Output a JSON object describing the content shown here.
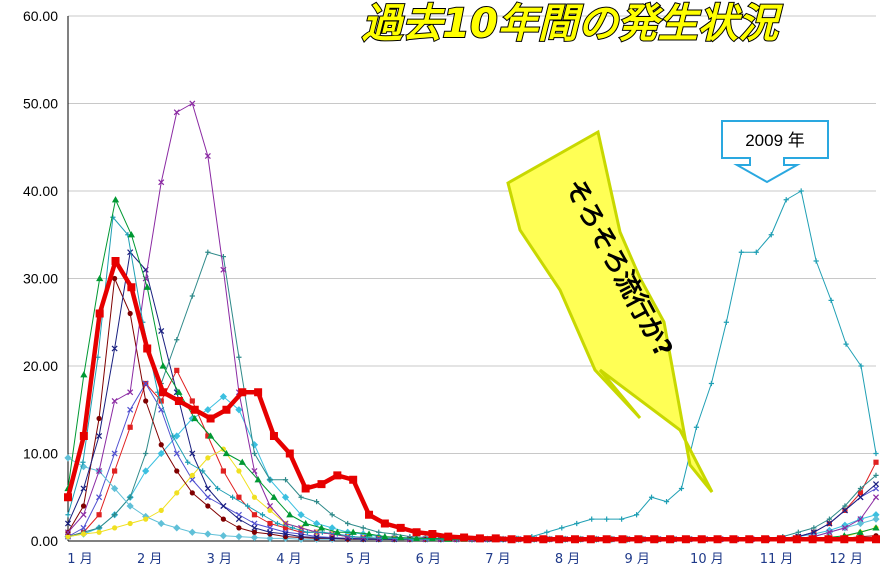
{
  "colors": {
    "series": [
      "#e60000",
      "#009933",
      "#1f9fb4",
      "#8b2aa3",
      "#1a2080",
      "#800000",
      "#f0e020",
      "#60c0d8",
      "#2f8a8a",
      "#5050d0",
      "#e02020",
      "#3cc0e0"
    ],
    "bolt_fill": "#ffff55",
    "bolt_stroke": "#c8d800",
    "callout_stroke": "#2aa8e0",
    "axis": "#000000",
    "grid": "#c8c8c8"
  },
  "texts": {
    "title": "過去10年間の発生状況",
    "bolt_text": "そろそろ流行か?",
    "callout_label": "2009 年"
  },
  "chart_data": {
    "type": "line",
    "title": "過去10年間の発生状況",
    "xlabel": "",
    "ylabel": "",
    "ylim": [
      0,
      60
    ],
    "yticks": [
      "0.00",
      "10.00",
      "20.00",
      "30.00",
      "40.00",
      "50.00",
      "60.00"
    ],
    "month_labels": [
      "1 月",
      "2 月",
      "3 月",
      "4 月",
      "5 月",
      "6 月",
      "7 月",
      "8 月",
      "9 月",
      "10 月",
      "11 月",
      "12 月"
    ],
    "grid": "horizontal",
    "annotations": [
      "そろそろ流行か?",
      "2009 年"
    ],
    "series": [
      {
        "marker": "square",
        "width": 4.5,
        "values": [
          5,
          12,
          26,
          32,
          29,
          22,
          17,
          16,
          15,
          14,
          15,
          17,
          17,
          12,
          10,
          6,
          6.5,
          7.5,
          7,
          3,
          2,
          1.5,
          1,
          0.8,
          0.5,
          0.4,
          0.3,
          0.3,
          0.2,
          0.2,
          0.2,
          0.2,
          0.2,
          0.2,
          0.2,
          0.2,
          0.2,
          0.2,
          0.2,
          0.2,
          0.2,
          0.2,
          0.2,
          0.2,
          0.2,
          0.2,
          0.2,
          0.2,
          0.2,
          0.2,
          0.2,
          0.2
        ]
      },
      {
        "marker": "triangle",
        "width": 1,
        "values": [
          6,
          19,
          30,
          39,
          35,
          29,
          20,
          17,
          14,
          12,
          10,
          9,
          7,
          5,
          3,
          2,
          1.5,
          1,
          1,
          0.8,
          0.5,
          0.4,
          0.3,
          0.3,
          0.2,
          0.2,
          0.2,
          0.2,
          0.2,
          0.2,
          0.2,
          0.2,
          0.2,
          0.2,
          0.2,
          0.2,
          0.2,
          0.2,
          0.2,
          0.2,
          0.2,
          0.2,
          0.2,
          0.2,
          0.2,
          0.2,
          0.2,
          0.3,
          0.4,
          0.6,
          1,
          1.5
        ]
      },
      {
        "marker": "plus",
        "width": 1,
        "values": [
          3,
          9,
          21,
          37,
          35,
          25,
          17,
          12,
          9,
          8,
          6,
          5,
          4,
          3,
          2,
          1.5,
          1,
          1,
          0.8,
          0.5,
          0.4,
          0.3,
          0.3,
          0.2,
          0.2,
          0.2,
          0.2,
          0.2,
          0.2,
          0.2,
          0.3,
          0.5,
          1,
          1.5,
          2,
          2.5,
          2.5,
          2.5,
          3,
          5,
          4.5,
          6,
          13,
          18,
          25,
          33,
          33,
          35,
          39,
          40,
          32,
          27.5,
          22.5,
          20,
          10
        ]
      },
      {
        "marker": "x",
        "width": 1,
        "values": [
          1,
          3,
          8,
          16,
          17,
          30,
          41,
          49,
          50,
          44,
          31,
          17,
          8,
          4,
          2,
          1.5,
          1,
          0.8,
          0.5,
          0.4,
          0.3,
          0.3,
          0.2,
          0.2,
          0.2,
          0.2,
          0.2,
          0.2,
          0.2,
          0.2,
          0.2,
          0.2,
          0.2,
          0.2,
          0.2,
          0.2,
          0.2,
          0.2,
          0.2,
          0.2,
          0.2,
          0.2,
          0.2,
          0.2,
          0.2,
          0.2,
          0.2,
          0.3,
          0.5,
          1,
          1.5,
          2.5,
          5
        ]
      },
      {
        "marker": "x",
        "width": 1,
        "values": [
          2,
          6,
          12,
          22,
          33,
          31,
          24,
          17,
          10,
          6,
          4,
          2.5,
          1.5,
          1,
          0.8,
          0.5,
          0.4,
          0.3,
          0.3,
          0.2,
          0.2,
          0.2,
          0.2,
          0.2,
          0.2,
          0.2,
          0.2,
          0.2,
          0.2,
          0.2,
          0.2,
          0.2,
          0.2,
          0.2,
          0.2,
          0.2,
          0.2,
          0.2,
          0.2,
          0.2,
          0.2,
          0.2,
          0.2,
          0.2,
          0.2,
          0.2,
          0.3,
          0.5,
          1,
          2,
          3.5,
          5,
          6.5
        ]
      },
      {
        "marker": "circle",
        "width": 1,
        "values": [
          1,
          4,
          14,
          30,
          26,
          16,
          11,
          8,
          5.5,
          4,
          2.5,
          1.5,
          1,
          0.8,
          0.5,
          0.4,
          0.3,
          0.3,
          0.2,
          0.2,
          0.2,
          0.2,
          0.2,
          0.2,
          0.2,
          0.2,
          0.2,
          0.2,
          0.2,
          0.2,
          0.2,
          0.2,
          0.2,
          0.2,
          0.2,
          0.2,
          0.2,
          0.2,
          0.2,
          0.2,
          0.2,
          0.2,
          0.2,
          0.2,
          0.2,
          0.2,
          0.2,
          0.2,
          0.2,
          0.2,
          0.3,
          0.5,
          0.6
        ]
      },
      {
        "marker": "circle",
        "width": 1,
        "values": [
          0.5,
          0.8,
          1,
          1.5,
          2,
          2.5,
          3.5,
          5.5,
          7.5,
          9.5,
          10.5,
          8,
          5,
          3.5,
          2,
          1.5,
          1,
          0.8,
          0.5,
          0.4,
          0.3,
          0.3,
          0.2,
          0.2,
          0.2,
          0.2,
          0.2,
          0.2,
          0.2,
          0.2,
          0.2,
          0.2,
          0.2,
          0.2,
          0.2,
          0.2,
          0.2,
          0.2,
          0.2,
          0.2,
          0.2,
          0.2,
          0.2,
          0.2,
          0.2,
          0.2,
          0.2,
          0.2,
          0.2,
          0.3,
          0.5,
          1,
          1.5
        ]
      },
      {
        "marker": "diamond",
        "width": 1,
        "values": [
          9.5,
          8.5,
          8,
          6,
          4,
          2.8,
          2,
          1.5,
          1,
          0.8,
          0.6,
          0.5,
          0.4,
          0.3,
          0.3,
          0.2,
          0.2,
          0.2,
          0.2,
          0.2,
          0.2,
          0.2,
          0.2,
          0.2,
          0.2,
          0.2,
          0.2,
          0.2,
          0.2,
          0.2,
          0.2,
          0.2,
          0.2,
          0.2,
          0.2,
          0.2,
          0.2,
          0.2,
          0.2,
          0.2,
          0.2,
          0.2,
          0.2,
          0.2,
          0.2,
          0.2,
          0.2,
          0.3,
          0.5,
          1,
          1.5,
          2,
          2.5
        ]
      },
      {
        "marker": "plus",
        "width": 1,
        "values": [
          0.5,
          1,
          1.5,
          3,
          5,
          10,
          18,
          23,
          28,
          33,
          32.5,
          21,
          10,
          7,
          7,
          5,
          4.5,
          3,
          2,
          1.5,
          1,
          0.8,
          0.5,
          0.4,
          0.3,
          0.3,
          0.2,
          0.2,
          0.2,
          0.2,
          0.2,
          0.2,
          0.2,
          0.2,
          0.2,
          0.2,
          0.2,
          0.2,
          0.2,
          0.2,
          0.2,
          0.2,
          0.2,
          0.2,
          0.2,
          0.3,
          0.5,
          1,
          1.5,
          2.5,
          4,
          6,
          7.5
        ]
      },
      {
        "marker": "x",
        "width": 1,
        "values": [
          0.5,
          1.5,
          5,
          10,
          15,
          18,
          15,
          10,
          7,
          5,
          4,
          3,
          2,
          1.5,
          1,
          0.8,
          0.5,
          0.4,
          0.3,
          0.3,
          0.2,
          0.2,
          0.2,
          0.2,
          0.2,
          0.2,
          0.2,
          0.2,
          0.2,
          0.2,
          0.2,
          0.2,
          0.2,
          0.2,
          0.2,
          0.2,
          0.2,
          0.2,
          0.2,
          0.2,
          0.2,
          0.2,
          0.2,
          0.2,
          0.2,
          0.2,
          0.3,
          0.5,
          1,
          2,
          3.5,
          5,
          6
        ]
      },
      {
        "marker": "square",
        "width": 1,
        "values": [
          0.5,
          1,
          3,
          8,
          13,
          18,
          16,
          19.5,
          16,
          12,
          8,
          5,
          3,
          2,
          1.5,
          1,
          1,
          0.8,
          0.5,
          0.4,
          0.3,
          0.3,
          0.2,
          0.2,
          0.2,
          0.2,
          0.2,
          0.2,
          0.2,
          0.2,
          0.2,
          0.2,
          0.2,
          0.2,
          0.2,
          0.2,
          0.2,
          0.2,
          0.2,
          0.2,
          0.2,
          0.2,
          0.2,
          0.2,
          0.2,
          0.2,
          0.3,
          0.5,
          1,
          2,
          3.5,
          5.5,
          9
        ]
      },
      {
        "marker": "diamond",
        "width": 1,
        "values": [
          0.5,
          0.8,
          1.5,
          3,
          5,
          8,
          10,
          12,
          14,
          15,
          16.5,
          15,
          11,
          7,
          5,
          3,
          2,
          1.5,
          1,
          0.8,
          0.5,
          0.4,
          0.3,
          0.3,
          0.2,
          0.2,
          0.2,
          0.2,
          0.2,
          0.2,
          0.2,
          0.2,
          0.2,
          0.2,
          0.2,
          0.2,
          0.2,
          0.2,
          0.2,
          0.2,
          0.2,
          0.2,
          0.2,
          0.2,
          0.2,
          0.2,
          0.3,
          0.5,
          0.8,
          1.2,
          1.8,
          2.5,
          3
        ]
      }
    ]
  }
}
